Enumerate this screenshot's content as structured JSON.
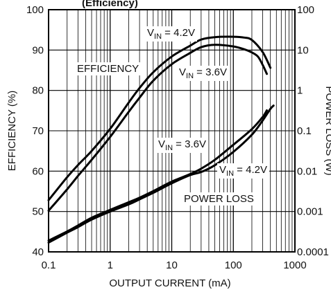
{
  "chart_data": {
    "type": "line",
    "title": "",
    "title_fragment": "(Efficiency)",
    "xlabel": "OUTPUT CURRENT (mA)",
    "ylabel": "EFFICIENCY (%)",
    "y2label": "POWER LOSS (W)",
    "x_scale": "log",
    "xlim": [
      0.1,
      1000
    ],
    "ylim": [
      40,
      100
    ],
    "y2_scale": "log",
    "y2lim": [
      0.0001,
      100
    ],
    "grid": true,
    "x_ticks": [
      "0.1",
      "1",
      "10",
      "100",
      "1000"
    ],
    "y_ticks": [
      "40",
      "50",
      "60",
      "70",
      "80",
      "90",
      "100"
    ],
    "y2_ticks": [
      "0.0001",
      "0.001",
      "0.01",
      "0.1",
      "1",
      "10",
      "100"
    ],
    "series": [
      {
        "name": "VIN = 4.2V",
        "group": "EFFICIENCY",
        "axis": "left",
        "x": [
          0.1,
          0.2,
          0.3,
          0.5,
          1,
          2,
          3,
          5,
          10,
          20,
          30,
          50,
          100,
          150,
          200,
          300,
          400
        ],
        "y": [
          52.8,
          58.5,
          61.5,
          65,
          70.5,
          77,
          80.6,
          84.5,
          88.4,
          91.1,
          92.6,
          93.2,
          93.3,
          93.1,
          92.5,
          89.5,
          85.6
        ]
      },
      {
        "name": "VIN = 3.6V",
        "group": "EFFICIENCY",
        "axis": "left",
        "x": [
          0.1,
          0.2,
          0.3,
          0.5,
          1,
          2,
          3,
          5,
          10,
          20,
          30,
          50,
          100,
          150,
          200,
          250,
          300,
          350
        ],
        "y": [
          50.2,
          55.5,
          58.8,
          62.8,
          68.5,
          74.7,
          78.2,
          82.4,
          86.5,
          89.3,
          90.7,
          91.3,
          90.9,
          90.2,
          89.4,
          88.4,
          86.3,
          84.1
        ]
      },
      {
        "name": "VIN = 3.6V",
        "group": "POWER LOSS",
        "axis": "right",
        "x": [
          0.1,
          0.2,
          0.3,
          0.5,
          1,
          2,
          3,
          5,
          10,
          20,
          30,
          50,
          100,
          200,
          300,
          350
        ],
        "y": [
          0.00019,
          0.00032,
          0.00045,
          0.0007,
          0.0011,
          0.0017,
          0.0022,
          0.0032,
          0.0055,
          0.0085,
          0.0115,
          0.019,
          0.045,
          0.11,
          0.22,
          0.32
        ]
      },
      {
        "name": "VIN = 4.2V",
        "group": "POWER LOSS",
        "axis": "right",
        "x": [
          0.1,
          0.2,
          0.3,
          0.5,
          1,
          2,
          3,
          5,
          10,
          20,
          30,
          50,
          100,
          200,
          300,
          400,
          450
        ],
        "y": [
          0.00017,
          0.0003,
          0.00041,
          0.00063,
          0.001,
          0.0015,
          0.002,
          0.0029,
          0.005,
          0.008,
          0.0095,
          0.014,
          0.03,
          0.08,
          0.18,
          0.35,
          0.42
        ]
      }
    ],
    "annotations": [
      {
        "id": "vin42-eff",
        "main": "V",
        "sub": "IN",
        "rest": " = 4.2V"
      },
      {
        "id": "eff-label",
        "main": "EFFICIENCY"
      },
      {
        "id": "vin36-eff",
        "main": "V",
        "sub": "IN",
        "rest": " = 3.6V"
      },
      {
        "id": "vin36-loss",
        "main": "V",
        "sub": "IN",
        "rest": " = 3.6V"
      },
      {
        "id": "vin42-loss",
        "main": "V",
        "sub": "IN",
        "rest": " = 4.2V"
      },
      {
        "id": "loss-label",
        "main": "POWER LOSS"
      }
    ]
  }
}
